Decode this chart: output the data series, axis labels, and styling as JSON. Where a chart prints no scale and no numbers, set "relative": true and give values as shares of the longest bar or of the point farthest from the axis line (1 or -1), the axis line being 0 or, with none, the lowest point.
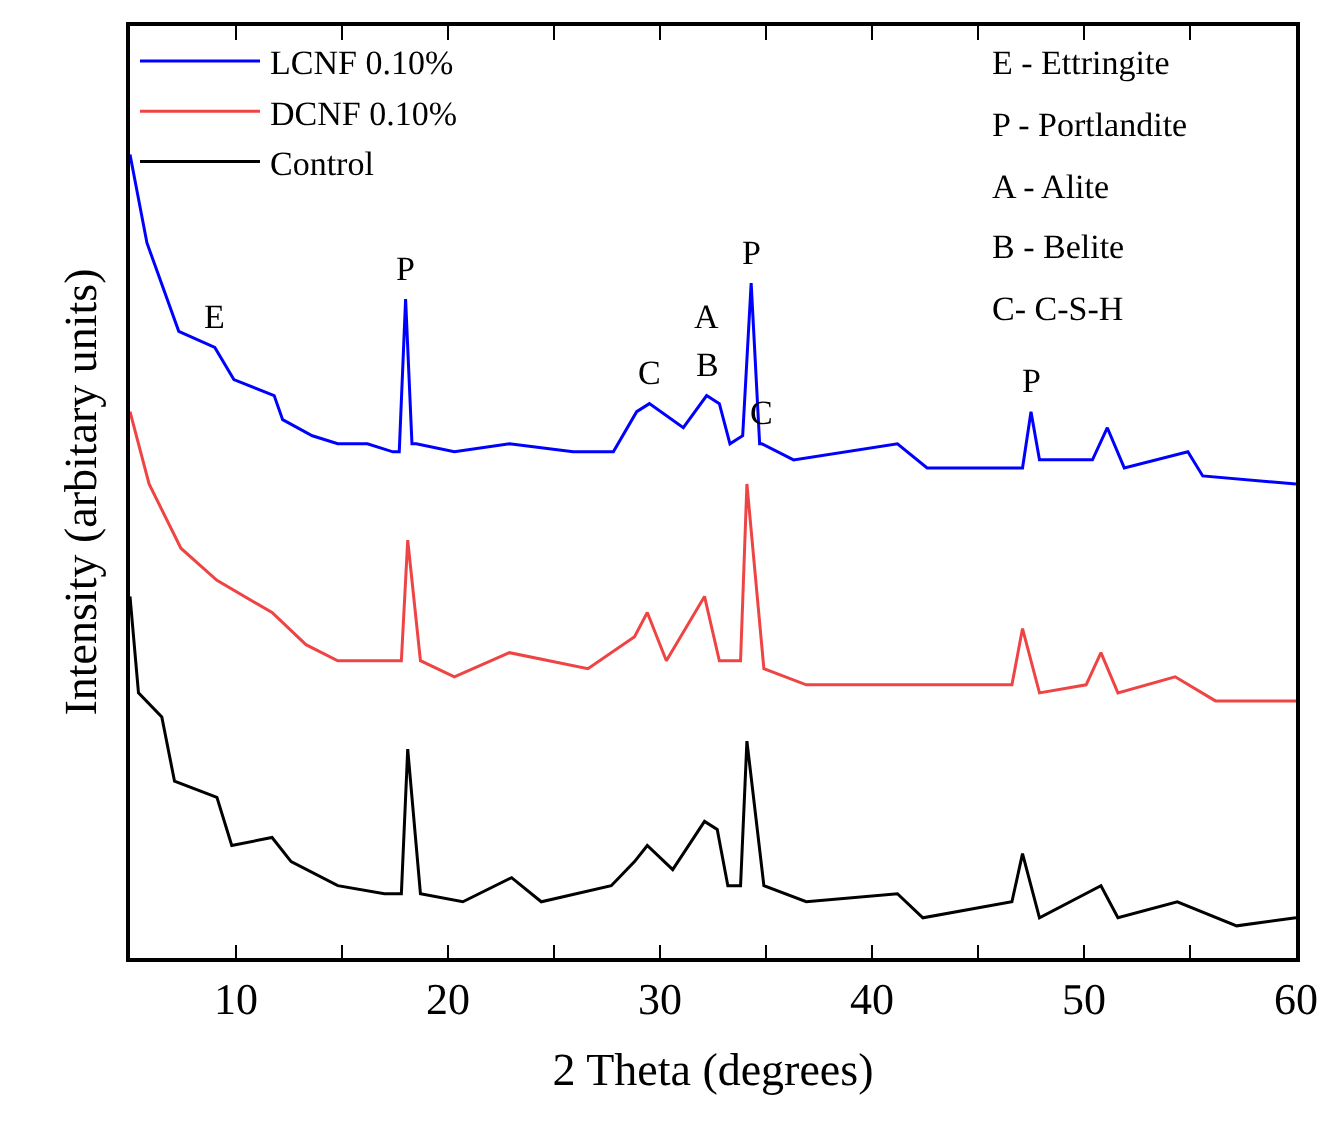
{
  "chart_data": {
    "type": "line",
    "relative": true,
    "xlabel": "2 Theta (degrees)",
    "ylabel": "Intensity (arbitary units)",
    "xlim": [
      5,
      60
    ],
    "xticks": [
      {
        "value": 5,
        "label": null
      },
      10,
      {
        "value": 15,
        "label": null
      },
      20,
      {
        "value": 25,
        "label": null
      },
      30,
      {
        "value": 35,
        "label": null
      },
      40,
      {
        "value": 45,
        "label": null
      },
      50,
      {
        "value": 55,
        "label": null
      },
      60
    ],
    "legend": "top left",
    "line_style": "solid",
    "marker": "none",
    "series": [
      {
        "name": "LCNF 0.10%",
        "color": "#0000ff",
        "x": [
          5,
          5.8,
          7.3,
          9.0,
          9.9,
          11.8,
          12.2,
          13.6,
          14.8,
          16.2,
          17.4,
          17.7,
          18.0,
          18.3,
          18.5,
          20.3,
          22.9,
          25.9,
          27.8,
          28.9,
          29.5,
          31.1,
          32.2,
          32.8,
          33.3,
          33.9,
          34.3,
          34.7,
          34.8,
          36.3,
          41.2,
          42.6,
          46.9,
          47.1,
          47.5,
          47.9,
          48.2,
          50.4,
          51.1,
          51.9,
          54.9,
          55.6,
          60
        ],
        "values": [
          1.0,
          0.89,
          0.78,
          0.76,
          0.72,
          0.7,
          0.67,
          0.65,
          0.64,
          0.64,
          0.63,
          0.63,
          0.82,
          0.64,
          0.64,
          0.63,
          0.64,
          0.63,
          0.63,
          0.68,
          0.69,
          0.66,
          0.7,
          0.69,
          0.64,
          0.65,
          0.84,
          0.64,
          0.64,
          0.62,
          0.64,
          0.61,
          0.61,
          0.61,
          0.68,
          0.62,
          0.62,
          0.62,
          0.66,
          0.61,
          0.63,
          0.6,
          0.59
        ]
      },
      {
        "name": "DCNF 0.10%",
        "color": "#ef4444",
        "x": [
          5,
          5.9,
          7.4,
          9.1,
          11.7,
          13.3,
          14.8,
          17.4,
          17.8,
          18.1,
          18.7,
          20.3,
          22.9,
          26.6,
          28.8,
          29.4,
          30.3,
          32.1,
          32.8,
          33.8,
          34.1,
          34.9,
          36.9,
          42.4,
          46.6,
          47.1,
          47.9,
          50.1,
          50.8,
          51.6,
          54.3,
          56.2,
          60
        ],
        "values": [
          0.68,
          0.59,
          0.51,
          0.47,
          0.43,
          0.39,
          0.37,
          0.37,
          0.37,
          0.52,
          0.37,
          0.35,
          0.38,
          0.36,
          0.4,
          0.43,
          0.37,
          0.45,
          0.37,
          0.37,
          0.59,
          0.36,
          0.34,
          0.34,
          0.34,
          0.41,
          0.33,
          0.34,
          0.38,
          0.33,
          0.35,
          0.32,
          0.32
        ]
      },
      {
        "name": "Control",
        "color": "#000000",
        "x": [
          5,
          5.4,
          6.5,
          7.1,
          9.1,
          9.8,
          11.7,
          12.6,
          14.8,
          17.0,
          17.8,
          18.1,
          18.7,
          20.7,
          23.0,
          24.4,
          27.7,
          28.8,
          29.4,
          30.6,
          32.1,
          32.7,
          33.2,
          33.8,
          34.1,
          34.9,
          36.9,
          41.2,
          42.4,
          46.6,
          47.1,
          47.9,
          50.8,
          51.6,
          54.4,
          57.2,
          60
        ],
        "values": [
          0.45,
          0.33,
          0.3,
          0.22,
          0.2,
          0.14,
          0.15,
          0.12,
          0.09,
          0.08,
          0.08,
          0.26,
          0.08,
          0.07,
          0.1,
          0.07,
          0.09,
          0.12,
          0.14,
          0.11,
          0.17,
          0.16,
          0.09,
          0.09,
          0.27,
          0.09,
          0.07,
          0.08,
          0.05,
          0.07,
          0.13,
          0.05,
          0.09,
          0.05,
          0.07,
          0.04,
          0.05
        ]
      }
    ],
    "annotations": [
      {
        "text": "E",
        "x": 9.0,
        "y": 0.76
      },
      {
        "text": "P",
        "x": 18.0,
        "y": 0.82
      },
      {
        "text": "C",
        "x": 29.5,
        "y": 0.69
      },
      {
        "text": "A",
        "x": 32.2,
        "y": 0.7
      },
      {
        "text": "B",
        "x": 32.2,
        "y": 0.7
      },
      {
        "text": "P",
        "x": 34.3,
        "y": 0.84
      },
      {
        "text": "C",
        "x": 34.8,
        "y": 0.64
      },
      {
        "text": "P",
        "x": 47.5,
        "y": 0.68
      },
      "E - Ettringite",
      "P - Portlandite",
      "A - Alite",
      "B - Belite",
      "C- C-S-H"
    ]
  }
}
